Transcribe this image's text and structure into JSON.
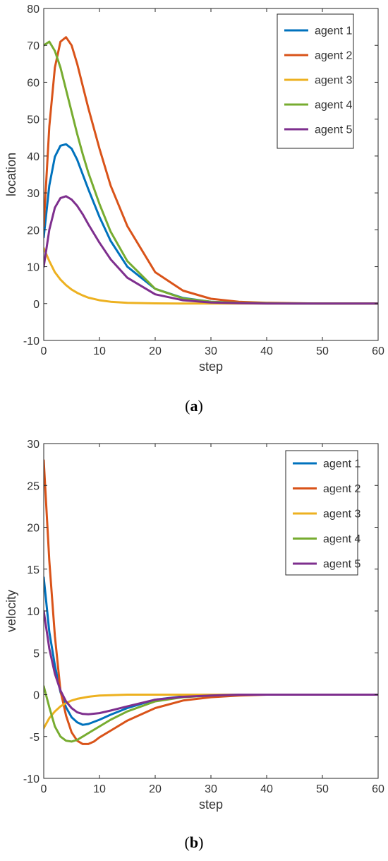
{
  "chart_data": [
    {
      "type": "line",
      "panel_label": "a",
      "xlabel": "step",
      "ylabel": "location",
      "xlim": [
        0,
        60
      ],
      "ylim": [
        -10,
        80
      ],
      "xticks": [
        0,
        10,
        20,
        30,
        40,
        50,
        60
      ],
      "yticks": [
        -10,
        0,
        10,
        20,
        30,
        40,
        50,
        60,
        70,
        80
      ],
      "grid": false,
      "legend_position": "top-right",
      "series": [
        {
          "name": "agent 1",
          "color": "#0072BD",
          "x": [
            0,
            1,
            2,
            3,
            4,
            5,
            6,
            7,
            8,
            10,
            12,
            15,
            20,
            25,
            30,
            35,
            40,
            45,
            50,
            60
          ],
          "y": [
            18,
            32,
            39.8,
            42.8,
            43.2,
            42,
            39,
            35,
            31,
            23.5,
            17,
            10,
            4,
            1.5,
            0.5,
            0.2,
            0.1,
            0,
            0,
            0
          ]
        },
        {
          "name": "agent 2",
          "color": "#D95319",
          "x": [
            0,
            1,
            2,
            3,
            4,
            5,
            6,
            7,
            8,
            10,
            12,
            15,
            20,
            25,
            30,
            35,
            40,
            45,
            50,
            60
          ],
          "y": [
            21,
            48,
            64,
            71,
            72.2,
            70,
            65,
            59,
            53,
            42,
            32,
            21,
            8.5,
            3.5,
            1.3,
            0.5,
            0.2,
            0.1,
            0,
            0
          ]
        },
        {
          "name": "agent 3",
          "color": "#EDB120",
          "x": [
            0,
            1,
            2,
            3,
            4,
            5,
            6,
            7,
            8,
            10,
            12,
            15,
            20,
            25,
            30,
            40,
            50,
            60
          ],
          "y": [
            15,
            11.5,
            8.5,
            6.5,
            5,
            3.8,
            2.9,
            2.2,
            1.6,
            0.9,
            0.5,
            0.2,
            0.05,
            0,
            0,
            0,
            0,
            0
          ]
        },
        {
          "name": "agent 4",
          "color": "#77AC30",
          "x": [
            0,
            1,
            2,
            3,
            4,
            5,
            6,
            7,
            8,
            10,
            12,
            15,
            20,
            25,
            30,
            35,
            40,
            50,
            60
          ],
          "y": [
            70,
            71,
            68.5,
            64,
            58,
            52,
            46,
            40.5,
            35.5,
            27,
            19.5,
            11.5,
            4,
            1.4,
            0.5,
            0.2,
            0.1,
            0,
            0
          ]
        },
        {
          "name": "agent 5",
          "color": "#7E2F8E",
          "x": [
            0,
            1,
            2,
            3,
            4,
            5,
            6,
            7,
            8,
            10,
            12,
            15,
            20,
            25,
            30,
            35,
            40,
            50,
            60
          ],
          "y": [
            10,
            20,
            26,
            28.6,
            29.1,
            28.2,
            26.5,
            24.2,
            21.5,
            16.5,
            12,
            7,
            2.5,
            0.9,
            0.3,
            0.1,
            0,
            0,
            0
          ]
        }
      ]
    },
    {
      "type": "line",
      "panel_label": "b",
      "xlabel": "step",
      "ylabel": "velocity",
      "xlim": [
        0,
        60
      ],
      "ylim": [
        -10,
        30
      ],
      "xticks": [
        0,
        10,
        20,
        30,
        40,
        50,
        60
      ],
      "yticks": [
        -10,
        -5,
        0,
        5,
        10,
        15,
        20,
        25,
        30
      ],
      "grid": false,
      "legend_position": "top-right",
      "series": [
        {
          "name": "agent 1",
          "color": "#0072BD",
          "x": [
            0,
            1,
            2,
            3,
            4,
            5,
            6,
            7,
            8,
            10,
            12,
            15,
            20,
            25,
            30,
            35,
            40,
            50,
            60
          ],
          "y": [
            14,
            7.5,
            3.5,
            0.3,
            -1.5,
            -2.7,
            -3.3,
            -3.6,
            -3.5,
            -3,
            -2.4,
            -1.6,
            -0.6,
            -0.2,
            -0.1,
            0,
            0,
            0,
            0
          ]
        },
        {
          "name": "agent 2",
          "color": "#D95319",
          "x": [
            0,
            1,
            2,
            3,
            4,
            5,
            6,
            7,
            8,
            9,
            10,
            12,
            15,
            20,
            25,
            30,
            35,
            40,
            50,
            60
          ],
          "y": [
            28,
            16,
            7,
            0.5,
            -2.5,
            -4.5,
            -5.5,
            -5.9,
            -5.9,
            -5.6,
            -5.1,
            -4.3,
            -3.1,
            -1.6,
            -0.7,
            -0.3,
            -0.1,
            0,
            0,
            0
          ]
        },
        {
          "name": "agent 3",
          "color": "#EDB120",
          "x": [
            0,
            1,
            2,
            3,
            4,
            5,
            6,
            8,
            10,
            15,
            20,
            30,
            40,
            50,
            60
          ],
          "y": [
            -4,
            -2.8,
            -2,
            -1.4,
            -1,
            -0.7,
            -0.5,
            -0.25,
            -0.1,
            0,
            0,
            0,
            0,
            0,
            0
          ]
        },
        {
          "name": "agent 4",
          "color": "#77AC30",
          "x": [
            0,
            1,
            2,
            3,
            4,
            5,
            6,
            7,
            8,
            10,
            12,
            15,
            20,
            25,
            30,
            35,
            40,
            50,
            60
          ],
          "y": [
            1,
            -1.5,
            -3.8,
            -5,
            -5.5,
            -5.6,
            -5.4,
            -5,
            -4.6,
            -3.8,
            -3,
            -2,
            -0.8,
            -0.3,
            -0.1,
            0,
            0,
            0,
            0
          ]
        },
        {
          "name": "agent 5",
          "color": "#7E2F8E",
          "x": [
            0,
            1,
            2,
            3,
            4,
            5,
            6,
            7,
            8,
            10,
            12,
            15,
            20,
            25,
            30,
            35,
            40,
            50,
            60
          ],
          "y": [
            10,
            5.5,
            2.5,
            0.5,
            -0.8,
            -1.6,
            -2.1,
            -2.3,
            -2.35,
            -2.2,
            -1.9,
            -1.4,
            -0.6,
            -0.25,
            -0.1,
            0,
            0,
            0,
            0
          ]
        }
      ]
    }
  ]
}
